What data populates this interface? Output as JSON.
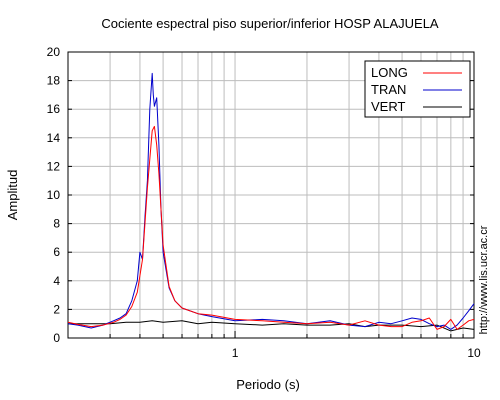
{
  "chart_data": {
    "type": "line",
    "title": "Cociente espectral piso superior/inferior  HOSP ALAJUELA",
    "xlabel": "Periodo (s)",
    "ylabel": "Amplitud",
    "xscale": "log",
    "xlim": [
      0.2,
      10
    ],
    "ylim": [
      0,
      20
    ],
    "xticks": [
      {
        "value": 1,
        "label": "1"
      },
      {
        "value": 10,
        "label": "10"
      }
    ],
    "yticks": [
      0,
      2,
      4,
      6,
      8,
      10,
      12,
      14,
      16,
      18,
      20
    ],
    "grid": true,
    "legend_position": "top-right",
    "side_text": "http://www.lis.ucr.ac.cr",
    "series": [
      {
        "name": "LONG",
        "color": "#ff0000",
        "points": [
          [
            0.2,
            1.1
          ],
          [
            0.22,
            0.95
          ],
          [
            0.25,
            0.8
          ],
          [
            0.28,
            0.9
          ],
          [
            0.31,
            1.1
          ],
          [
            0.33,
            1.3
          ],
          [
            0.35,
            1.6
          ],
          [
            0.37,
            2.2
          ],
          [
            0.39,
            3.2
          ],
          [
            0.41,
            5.5
          ],
          [
            0.43,
            10.5
          ],
          [
            0.45,
            14.5
          ],
          [
            0.46,
            14.8
          ],
          [
            0.47,
            13.5
          ],
          [
            0.48,
            11.5
          ],
          [
            0.5,
            6.5
          ],
          [
            0.53,
            3.6
          ],
          [
            0.56,
            2.6
          ],
          [
            0.6,
            2.1
          ],
          [
            0.7,
            1.7
          ],
          [
            0.8,
            1.6
          ],
          [
            1.0,
            1.3
          ],
          [
            1.3,
            1.2
          ],
          [
            1.6,
            1.1
          ],
          [
            2.0,
            1.0
          ],
          [
            2.5,
            1.1
          ],
          [
            3.0,
            0.9
          ],
          [
            3.5,
            1.2
          ],
          [
            4.0,
            0.9
          ],
          [
            4.5,
            0.8
          ],
          [
            5.0,
            0.8
          ],
          [
            5.5,
            1.1
          ],
          [
            6.0,
            1.2
          ],
          [
            6.5,
            1.4
          ],
          [
            7.0,
            0.6
          ],
          [
            7.5,
            0.8
          ],
          [
            8.0,
            1.3
          ],
          [
            8.5,
            0.6
          ],
          [
            9.0,
            0.9
          ],
          [
            9.5,
            1.2
          ],
          [
            10.0,
            1.3
          ]
        ]
      },
      {
        "name": "TRAN",
        "color": "#0000cc",
        "points": [
          [
            0.2,
            1.0
          ],
          [
            0.22,
            0.9
          ],
          [
            0.25,
            0.7
          ],
          [
            0.28,
            0.9
          ],
          [
            0.31,
            1.2
          ],
          [
            0.33,
            1.4
          ],
          [
            0.35,
            1.7
          ],
          [
            0.37,
            2.6
          ],
          [
            0.39,
            4.0
          ],
          [
            0.4,
            6.0
          ],
          [
            0.41,
            5.5
          ],
          [
            0.42,
            8.5
          ],
          [
            0.43,
            11.0
          ],
          [
            0.44,
            16.0
          ],
          [
            0.45,
            18.5
          ],
          [
            0.455,
            17.0
          ],
          [
            0.46,
            16.2
          ],
          [
            0.47,
            16.8
          ],
          [
            0.48,
            13.5
          ],
          [
            0.49,
            9.0
          ],
          [
            0.5,
            6.0
          ],
          [
            0.53,
            3.5
          ],
          [
            0.56,
            2.6
          ],
          [
            0.6,
            2.1
          ],
          [
            0.7,
            1.7
          ],
          [
            0.8,
            1.5
          ],
          [
            1.0,
            1.2
          ],
          [
            1.3,
            1.3
          ],
          [
            1.6,
            1.2
          ],
          [
            2.0,
            1.0
          ],
          [
            2.5,
            1.2
          ],
          [
            3.0,
            0.9
          ],
          [
            3.5,
            0.8
          ],
          [
            4.0,
            1.1
          ],
          [
            4.5,
            1.0
          ],
          [
            5.0,
            1.2
          ],
          [
            5.5,
            1.4
          ],
          [
            6.0,
            1.3
          ],
          [
            6.5,
            1.0
          ],
          [
            7.0,
            0.8
          ],
          [
            7.5,
            0.9
          ],
          [
            8.0,
            0.6
          ],
          [
            8.5,
            0.9
          ],
          [
            9.0,
            1.4
          ],
          [
            9.5,
            1.9
          ],
          [
            10.0,
            2.4
          ]
        ]
      },
      {
        "name": "VERT",
        "color": "#000000",
        "points": [
          [
            0.2,
            1.0
          ],
          [
            0.25,
            1.0
          ],
          [
            0.3,
            1.0
          ],
          [
            0.35,
            1.1
          ],
          [
            0.4,
            1.1
          ],
          [
            0.45,
            1.2
          ],
          [
            0.5,
            1.1
          ],
          [
            0.6,
            1.2
          ],
          [
            0.7,
            1.0
          ],
          [
            0.8,
            1.1
          ],
          [
            1.0,
            1.0
          ],
          [
            1.3,
            0.9
          ],
          [
            1.6,
            1.0
          ],
          [
            2.0,
            0.9
          ],
          [
            2.5,
            0.9
          ],
          [
            3.0,
            1.0
          ],
          [
            3.5,
            0.8
          ],
          [
            4.0,
            0.9
          ],
          [
            5.0,
            0.9
          ],
          [
            6.0,
            0.8
          ],
          [
            7.0,
            0.9
          ],
          [
            8.0,
            0.5
          ],
          [
            9.0,
            0.7
          ],
          [
            10.0,
            0.6
          ]
        ]
      }
    ]
  }
}
